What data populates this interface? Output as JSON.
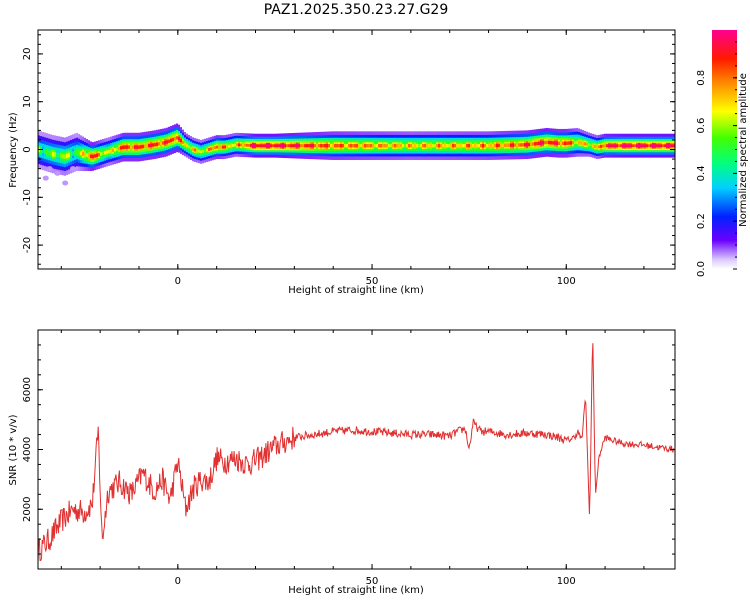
{
  "title": "PAZ1.2025.350.23.27.G29",
  "chart_data": [
    {
      "type": "heatmap",
      "xlabel": "Height of straight line (km)",
      "ylabel": "Frequency (Hz)",
      "xlim": [
        -36,
        128
      ],
      "ylim": [
        -25,
        25
      ],
      "xticks": [
        0,
        50,
        100
      ],
      "yticks": [
        -20,
        -10,
        0,
        10,
        20
      ],
      "colorbar": {
        "label": "Normalized spectral amplitude",
        "range": [
          0,
          1
        ],
        "ticks": [
          "0.0",
          "0.2",
          "0.4",
          "0.6",
          "0.8"
        ]
      },
      "ridge": {
        "x": [
          -36,
          -32,
          -29,
          -26,
          -22,
          -18,
          -14,
          -10,
          -6,
          -3,
          0,
          2,
          4,
          6,
          8,
          10,
          12,
          15,
          20,
          25,
          40,
          60,
          80,
          90,
          95,
          98,
          100,
          103,
          106,
          108,
          110,
          115,
          128
        ],
        "freq": [
          0,
          -1,
          -1.5,
          -0.5,
          -1.5,
          -0.5,
          0.5,
          0.5,
          1,
          1.5,
          2.5,
          1,
          0,
          -0.5,
          0,
          0.5,
          0.5,
          1,
          0.8,
          0.8,
          0.8,
          0.8,
          0.8,
          1,
          1.5,
          1.3,
          1.3,
          1.5,
          1,
          0.5,
          0.8,
          0.8,
          0.8
        ],
        "bandwidth": [
          4,
          4,
          4,
          4,
          3,
          3,
          3,
          3,
          3,
          3,
          3,
          2.5,
          2.5,
          2.5,
          2.5,
          2.5,
          2.5,
          2.5,
          2.5,
          2.5,
          3,
          3,
          3,
          3,
          3,
          3,
          3,
          3,
          2.5,
          2.5,
          2.5,
          2.5,
          2.5
        ],
        "core": [
          0.5,
          0.55,
          0.6,
          0.5,
          0.9,
          0.6,
          0.85,
          0.85,
          0.85,
          0.85,
          0.9,
          0.7,
          0.7,
          0.65,
          0.7,
          0.85,
          0.75,
          0.7,
          0.95,
          0.95,
          0.8,
          0.7,
          0.75,
          0.85,
          0.9,
          0.85,
          0.85,
          0.7,
          0.7,
          0.7,
          0.9,
          0.95,
          0.95
        ]
      },
      "scatter_low": {
        "x": [
          -34,
          -31,
          -29,
          -27,
          -33
        ],
        "freq": [
          -6,
          -5,
          -7,
          -4,
          -4
        ]
      }
    },
    {
      "type": "line",
      "xlabel": "Height of straight line (km)",
      "ylabel": "SNR (10 * v/v)",
      "xlim": [
        -36,
        128
      ],
      "ylim": [
        0,
        8000
      ],
      "xticks": [
        0,
        50,
        100
      ],
      "yticks": [
        2000,
        4000,
        6000
      ],
      "series": [
        {
          "color": "#e03030",
          "x": [
            -36,
            -33,
            -30,
            -27,
            -24,
            -22,
            -20.5,
            -19.5,
            -18,
            -15,
            -12,
            -9,
            -6,
            -4,
            -2,
            0,
            2,
            4,
            6,
            8,
            10,
            12,
            15,
            18,
            21,
            25,
            30,
            35,
            40,
            45,
            50,
            55,
            60,
            65,
            70,
            72,
            74,
            75,
            76,
            78,
            80,
            85,
            90,
            95,
            98,
            100,
            102,
            103,
            104,
            105,
            106,
            106.8,
            107.5,
            108.5,
            110,
            112,
            115,
            120,
            125,
            128
          ],
          "y": [
            600,
            1000,
            1600,
            2000,
            1900,
            2200,
            4600,
            900,
            2600,
            2900,
            2500,
            3200,
            2600,
            3000,
            2300,
            3600,
            2000,
            2700,
            3000,
            2900,
            3700,
            3600,
            3700,
            3500,
            3700,
            4100,
            4400,
            4500,
            4600,
            4650,
            4600,
            4550,
            4500,
            4500,
            4450,
            4600,
            4700,
            4000,
            4900,
            4600,
            4600,
            4500,
            4550,
            4500,
            4400,
            4300,
            4400,
            4600,
            4300,
            5800,
            1600,
            8000,
            2500,
            3800,
            4400,
            4300,
            4200,
            4150,
            4050,
            4000
          ]
        }
      ]
    }
  ]
}
